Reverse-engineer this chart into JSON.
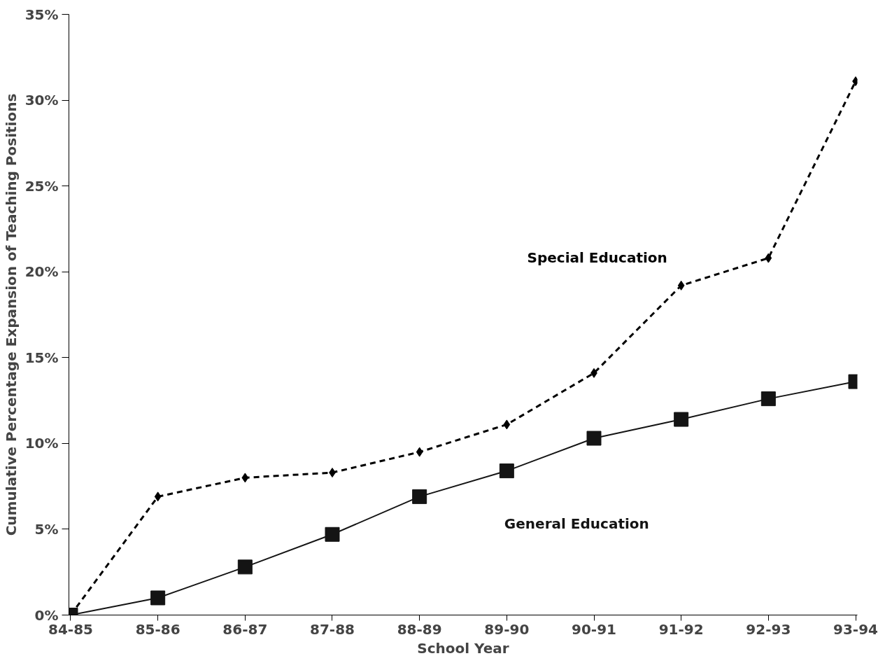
{
  "chart_data": {
    "type": "line",
    "xlabel": "School Year",
    "ylabel": "Cumulative Percentage Expansion of Teaching Positions",
    "categories": [
      "84-85",
      "85-86",
      "86-87",
      "87-88",
      "88-89",
      "89-90",
      "90-91",
      "91-92",
      "92-93",
      "93-94"
    ],
    "series": [
      {
        "name": "Special Education",
        "color": "#000000",
        "marker": "diamond",
        "line_style": "dashed",
        "values": [
          0,
          6.9,
          8.0,
          8.3,
          9.5,
          11.1,
          14.1,
          19.2,
          20.8,
          31.1
        ]
      },
      {
        "name": "General Education",
        "color": "#141414",
        "marker": "square",
        "line_style": "solid",
        "values": [
          0,
          1.0,
          2.8,
          4.7,
          6.9,
          8.4,
          10.3,
          11.4,
          12.6,
          13.6
        ]
      }
    ],
    "ylim": [
      0,
      35
    ],
    "yticks": [
      {
        "value": 0,
        "label": "0%"
      },
      {
        "value": 5,
        "label": "5%"
      },
      {
        "value": 10,
        "label": "10%"
      },
      {
        "value": 15,
        "label": "15%"
      },
      {
        "value": 20,
        "label": "20%"
      },
      {
        "value": 25,
        "label": "25%"
      },
      {
        "value": 30,
        "label": "30%"
      },
      {
        "value": 35,
        "label": "35%"
      }
    ],
    "grid": false
  }
}
